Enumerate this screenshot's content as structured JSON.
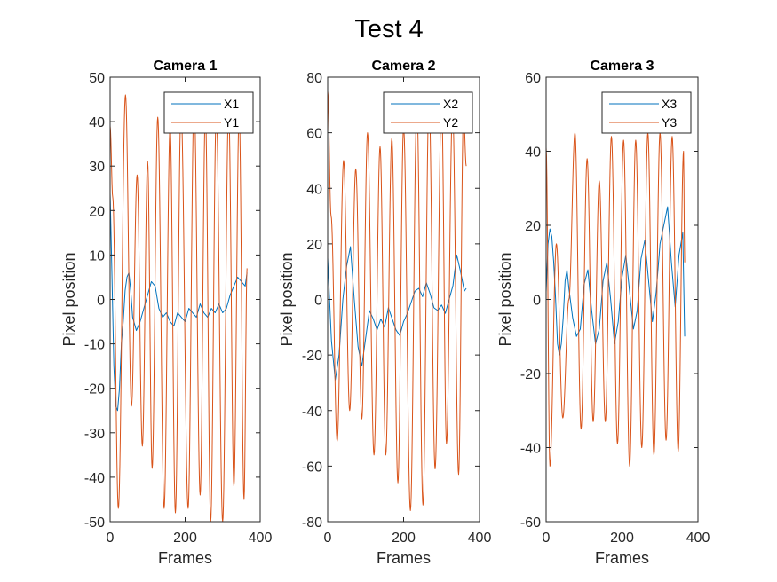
{
  "figure_title": "Test 4",
  "colors": {
    "x_series": "#0072BD",
    "y_series": "#D95319",
    "axis": "#262626"
  },
  "chart_data": [
    {
      "type": "line",
      "title": "Camera 1",
      "xlabel": "Frames",
      "ylabel": "Pixel position",
      "xlim": [
        0,
        400
      ],
      "ylim": [
        -50,
        50
      ],
      "xticks": [
        0,
        200,
        400
      ],
      "yticks": [
        -50,
        -40,
        -30,
        -20,
        -10,
        0,
        10,
        20,
        30,
        40,
        50
      ],
      "legend_position": "top-right",
      "n_points": 366,
      "series": [
        {
          "name": "X1",
          "color": "#0072BD",
          "x": [
            0,
            5,
            10,
            15,
            20,
            25,
            30,
            35,
            40,
            45,
            50,
            55,
            60,
            70,
            80,
            90,
            100,
            110,
            120,
            130,
            140,
            150,
            160,
            170,
            180,
            190,
            200,
            210,
            220,
            230,
            240,
            250,
            260,
            270,
            280,
            290,
            300,
            310,
            320,
            330,
            340,
            350,
            360,
            365
          ],
          "y": [
            24,
            5,
            -15,
            -24,
            -25,
            -20,
            -10,
            -5,
            2,
            5,
            6,
            2,
            -4,
            -7,
            -5,
            -2,
            1,
            4,
            3,
            -2,
            -4,
            -3,
            -5,
            -6,
            -3,
            -4,
            -5,
            -2,
            -3,
            -4,
            -1,
            -3,
            -4,
            -2,
            -3,
            -1,
            -3,
            -2,
            1,
            3,
            5,
            4,
            3,
            6
          ]
        },
        {
          "name": "Y1",
          "color": "#D95319",
          "x": [
            0,
            7,
            22,
            41,
            57,
            72,
            86,
            100,
            112,
            127,
            144,
            160,
            174,
            189,
            208,
            224,
            240,
            254,
            268,
            283,
            300,
            316,
            330,
            344,
            357,
            365
          ],
          "y": [
            39,
            23,
            -47,
            46,
            -24,
            28,
            -33,
            31,
            -38,
            41,
            -47,
            39,
            -48,
            43,
            -47,
            45,
            -44,
            42,
            -50,
            42,
            -50,
            43,
            -42,
            42,
            -45,
            7
          ]
        }
      ]
    },
    {
      "type": "line",
      "title": "Camera 2",
      "xlabel": "Frames",
      "ylabel": "Pixel position",
      "xlim": [
        0,
        400
      ],
      "ylim": [
        -80,
        80
      ],
      "xticks": [
        0,
        200,
        400
      ],
      "yticks": [
        -80,
        -60,
        -40,
        -20,
        0,
        20,
        40,
        60,
        80
      ],
      "legend_position": "top-right",
      "n_points": 366,
      "series": [
        {
          "name": "X2",
          "color": "#0072BD",
          "x": [
            0,
            10,
            20,
            30,
            40,
            50,
            60,
            70,
            80,
            90,
            100,
            110,
            120,
            130,
            140,
            150,
            160,
            170,
            180,
            190,
            200,
            210,
            220,
            230,
            240,
            250,
            260,
            270,
            280,
            290,
            300,
            310,
            320,
            330,
            340,
            350,
            360,
            365
          ],
          "y": [
            15,
            -15,
            -29,
            -20,
            0,
            12,
            19,
            0,
            -17,
            -24,
            -14,
            -4,
            -7,
            -11,
            -7,
            -10,
            -3,
            -7,
            -11,
            -13,
            -8,
            -5,
            -1,
            3,
            4,
            1,
            6,
            2,
            -3,
            -4,
            -2,
            -5,
            0,
            5,
            16,
            10,
            3,
            4
          ]
        },
        {
          "name": "Y2",
          "color": "#D95319",
          "x": [
            0,
            9,
            25,
            42,
            58,
            74,
            90,
            105,
            122,
            138,
            153,
            169,
            185,
            200,
            218,
            235,
            251,
            267,
            283,
            300,
            313,
            329,
            345,
            358,
            365
          ],
          "y": [
            75,
            30,
            -51,
            50,
            -40,
            47,
            -43,
            60,
            -56,
            55,
            -56,
            58,
            -66,
            62,
            -76,
            70,
            -74,
            72,
            -61,
            72,
            -52,
            69,
            -63,
            68,
            48
          ]
        }
      ]
    },
    {
      "type": "line",
      "title": "Camera 3",
      "xlabel": "Frames",
      "ylabel": "Pixel position",
      "xlim": [
        0,
        400
      ],
      "ylim": [
        -60,
        60
      ],
      "xticks": [
        0,
        200,
        400
      ],
      "yticks": [
        -60,
        -40,
        -20,
        0,
        20,
        40,
        60
      ],
      "legend_position": "top-right",
      "n_points": 366,
      "series": [
        {
          "name": "X3",
          "color": "#0072BD",
          "x": [
            0,
            5,
            10,
            15,
            20,
            25,
            30,
            35,
            40,
            45,
            50,
            55,
            60,
            70,
            80,
            90,
            100,
            110,
            120,
            130,
            140,
            150,
            160,
            170,
            180,
            190,
            200,
            210,
            220,
            230,
            240,
            250,
            260,
            270,
            280,
            290,
            300,
            310,
            320,
            330,
            340,
            350,
            360,
            365
          ],
          "y": [
            2,
            15,
            19,
            17,
            10,
            0,
            -12,
            -15,
            -12,
            -5,
            5,
            8,
            3,
            -5,
            -10,
            -8,
            4,
            8,
            -3,
            -12,
            -8,
            5,
            10,
            0,
            -12,
            -6,
            6,
            12,
            2,
            -8,
            -3,
            11,
            16,
            5,
            -6,
            2,
            15,
            20,
            25,
            10,
            -2,
            12,
            18,
            -10
          ]
        },
        {
          "name": "Y3",
          "color": "#D95319",
          "x": [
            0,
            10,
            27,
            44,
            60,
            76,
            92,
            108,
            124,
            140,
            156,
            172,
            188,
            204,
            220,
            236,
            252,
            268,
            284,
            300,
            316,
            332,
            348,
            362,
            365
          ],
          "y": [
            41,
            -45,
            15,
            -32,
            0,
            45,
            -35,
            38,
            -33,
            32,
            -33,
            44,
            -39,
            43,
            -45,
            43,
            -40,
            45,
            -42,
            45,
            -38,
            44,
            -41,
            40,
            10
          ]
        }
      ]
    }
  ]
}
